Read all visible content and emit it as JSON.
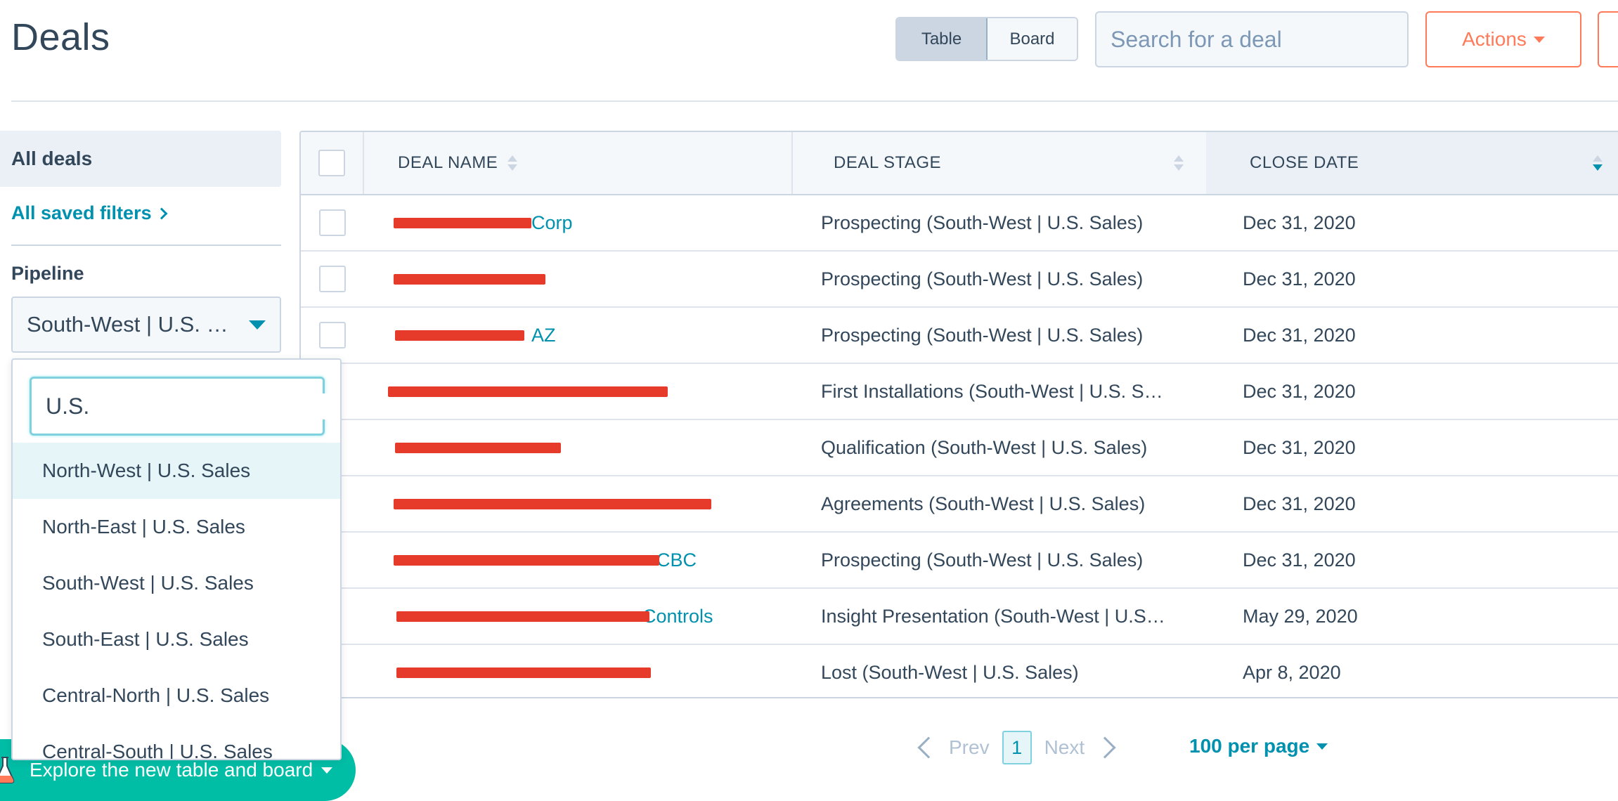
{
  "header": {
    "title": "Deals",
    "view_toggle": [
      "Table",
      "Board"
    ],
    "search_placeholder": "Search for a deal",
    "actions_label": "Actions"
  },
  "sidebar": {
    "all_deals": "All deals",
    "saved_filters": "All saved filters",
    "pipeline_label": "Pipeline",
    "pipeline_value": "South-West | U.S. …"
  },
  "dropdown": {
    "search_value": "U.S.",
    "options": [
      "North-West | U.S. Sales",
      "North-East | U.S. Sales",
      "South-West | U.S. Sales",
      "South-East | U.S. Sales",
      "Central-North | U.S. Sales",
      "Central-South | U.S. Sales"
    ]
  },
  "table": {
    "columns": [
      "DEAL NAME",
      "DEAL STAGE",
      "CLOSE DATE"
    ],
    "rows": [
      {
        "name": "Corp",
        "stage": "Prospecting (South-West | U.S. Sales)",
        "close": "Dec 31, 2020"
      },
      {
        "name": "",
        "stage": "Prospecting (South-West | U.S. Sales)",
        "close": "Dec 31, 2020"
      },
      {
        "name": "AZ",
        "stage": "Prospecting (South-West | U.S. Sales)",
        "close": "Dec 31, 2020"
      },
      {
        "name": "",
        "stage": "First Installations (South-West | U.S. S…",
        "close": "Dec 31, 2020"
      },
      {
        "name": "",
        "stage": "Qualification (South-West | U.S. Sales)",
        "close": "Dec 31, 2020"
      },
      {
        "name": "",
        "stage": "Agreements (South-West | U.S. Sales)",
        "close": "Dec 31, 2020"
      },
      {
        "name": "CBC",
        "stage": "Prospecting (South-West | U.S. Sales)",
        "close": "Dec 31, 2020"
      },
      {
        "name": "Controls",
        "stage": "Insight Presentation (South-West | U.S…",
        "close": "May 29, 2020"
      },
      {
        "name": "",
        "stage": "Lost (South-West | U.S. Sales)",
        "close": "Apr 8, 2020"
      }
    ]
  },
  "pagination": {
    "prev": "Prev",
    "page": "1",
    "next": "Next",
    "per_page": "100 per page"
  },
  "explore_banner": "Explore the new table and board",
  "colors": {
    "accent": "#0091ae",
    "orange": "#ff7a59",
    "text": "#33475b",
    "redaction": "#e63a2a",
    "teal": "#00bda5"
  }
}
